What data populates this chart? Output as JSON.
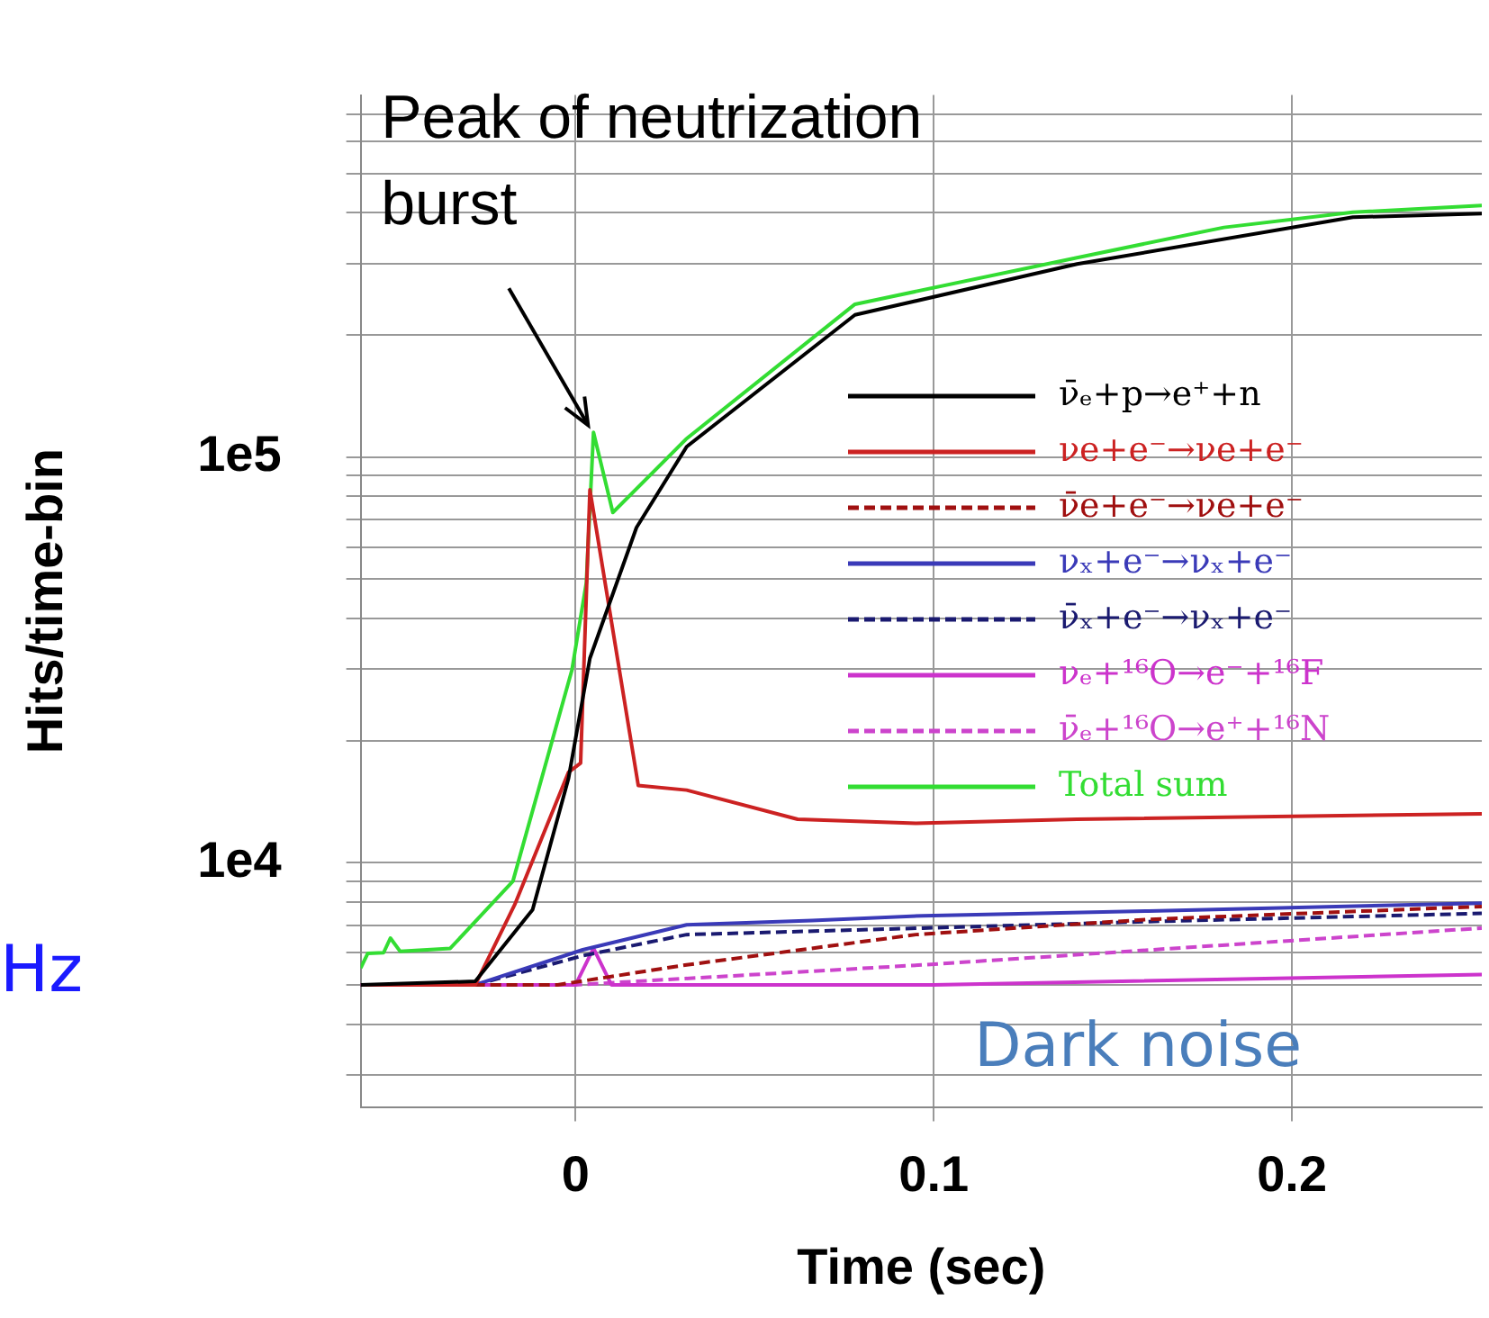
{
  "chart_data": {
    "type": "line",
    "ylabel": "Hits/time-bin",
    "xlabel": "Time (sec)",
    "log": "y",
    "grid": true,
    "legend": "right",
    "marker": "none",
    "xlim": [
      -0.06,
      0.253
    ],
    "xticks": [
      0,
      0.1,
      0.2
    ],
    "ylim": [
      2500,
      780000
    ],
    "yticks": [
      {
        "value": 3000,
        "label": null
      },
      {
        "value": 4000,
        "label": null
      },
      {
        "value": 5000,
        "label": null
      },
      {
        "value": 6000,
        "label": null
      },
      {
        "value": 7000,
        "label": null
      },
      {
        "value": 8000,
        "label": null
      },
      {
        "value": 9000,
        "label": null
      },
      {
        "value": 10000,
        "label": "1e4"
      },
      {
        "value": 20000,
        "label": null
      },
      {
        "value": 30000,
        "label": null
      },
      {
        "value": 40000,
        "label": null
      },
      {
        "value": 50000,
        "label": null
      },
      {
        "value": 60000,
        "label": null
      },
      {
        "value": 70000,
        "label": null
      },
      {
        "value": 80000,
        "label": null
      },
      {
        "value": 90000,
        "label": null
      },
      {
        "value": 100000,
        "label": "1e5"
      },
      {
        "value": 200000,
        "label": null
      },
      {
        "value": 300000,
        "label": null
      },
      {
        "value": 400000,
        "label": null
      },
      {
        "value": 500000,
        "label": null
      },
      {
        "value": 600000,
        "label": null
      },
      {
        "value": 700000,
        "label": null
      }
    ],
    "series": [
      {
        "name": "ν̄ₑ+p→e⁺+n",
        "color": "#000000",
        "line_style": "solid",
        "x": [
          -0.06,
          -0.028,
          -0.012,
          -0.002,
          0.004,
          0.017,
          0.031,
          0.078,
          0.14,
          0.217,
          0.253
        ],
        "values": [
          5000,
          5100,
          7660,
          16100,
          31900,
          67000,
          106000,
          224000,
          299000,
          390000,
          398000
        ]
      },
      {
        "name": "νe+e⁻→νe+e⁻",
        "color": "#cc2222",
        "line_style": "solid",
        "x": [
          -0.06,
          -0.028,
          -0.017,
          -0.002,
          0.0014,
          0.004,
          0.0175,
          0.031,
          0.062,
          0.095,
          0.14,
          0.253
        ],
        "values": [
          5000,
          5000,
          7880,
          16700,
          17600,
          83000,
          15500,
          15100,
          12800,
          12500,
          12800,
          13200
        ]
      },
      {
        "name": "ν̄e+e⁻→νe+e⁻",
        "color": "#a01010",
        "line_style": "dashed",
        "x": [
          -0.06,
          -0.005,
          0.031,
          0.095,
          0.16,
          0.253
        ],
        "values": [
          5000,
          5000,
          5600,
          6650,
          7250,
          7800
        ]
      },
      {
        "name": "νₓ+e⁻→νₓ+e⁻",
        "color": "#3a3ab8",
        "line_style": "solid",
        "x": [
          -0.06,
          -0.028,
          0.002,
          0.031,
          0.066,
          0.097,
          0.16,
          0.253
        ],
        "values": [
          5000,
          5000,
          6100,
          7030,
          7200,
          7400,
          7600,
          7950
        ]
      },
      {
        "name": "ν̄ₓ+e⁻→νₓ+e⁻",
        "color": "#1a1a70",
        "line_style": "dashed",
        "x": [
          -0.06,
          -0.028,
          0.002,
          0.031,
          0.097,
          0.16,
          0.253
        ],
        "values": [
          5000,
          5000,
          5900,
          6650,
          6900,
          7160,
          7500
        ]
      },
      {
        "name": "νₑ+¹⁶O→e⁻+¹⁶F",
        "color": "#cc33cc",
        "line_style": "solid",
        "x": [
          -0.06,
          0.0,
          0.005,
          0.01,
          0.1,
          0.253
        ],
        "values": [
          5000,
          5000,
          6150,
          5000,
          5000,
          5300
        ]
      },
      {
        "name": "ν̄ₑ+¹⁶O→e⁺+¹⁶N",
        "color": "#cc44cc",
        "line_style": "dashed",
        "x": [
          -0.06,
          0.0,
          0.097,
          0.253
        ],
        "values": [
          5000,
          5000,
          5600,
          6900
        ]
      },
      {
        "name": "Total sum",
        "color": "#33dd33",
        "line_style": "solid",
        "x": [
          -0.06,
          -0.058,
          -0.0536,
          -0.0517,
          -0.049,
          -0.035,
          -0.0175,
          -0.001,
          0.003,
          0.005,
          0.0104,
          0.031,
          0.078,
          0.14,
          0.181,
          0.217,
          0.253
        ],
        "values": [
          5500,
          5980,
          6000,
          6520,
          6050,
          6150,
          9000,
          29900,
          49000,
          115000,
          73000,
          111000,
          238000,
          310000,
          368000,
          401000,
          417000
        ]
      }
    ],
    "annotations": [
      {
        "text": "Peak of neutrization\nburst",
        "x": 0.005,
        "y": 115000
      },
      {
        "text": "Dark noise",
        "x": 0.157,
        "y": 5000
      },
      "Hz"
    ]
  }
}
